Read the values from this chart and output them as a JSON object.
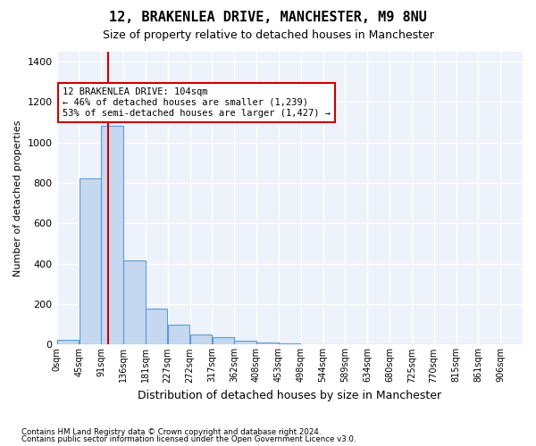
{
  "title": "12, BRAKENLEA DRIVE, MANCHESTER, M9 8NU",
  "subtitle": "Size of property relative to detached houses in Manchester",
  "xlabel": "Distribution of detached houses by size in Manchester",
  "ylabel": "Number of detached properties",
  "bar_color": "#c5d8f0",
  "bar_edge_color": "#5b9bd5",
  "background_color": "#eef2fa",
  "grid_color": "#ffffff",
  "bin_edges": [
    0,
    45,
    90,
    135,
    180,
    225,
    270,
    315,
    360,
    405,
    450,
    495,
    540,
    585,
    630,
    675,
    720,
    765,
    810,
    855,
    900,
    945
  ],
  "bin_labels": [
    "0sqm",
    "45sqm",
    "91sqm",
    "136sqm",
    "181sqm",
    "227sqm",
    "272sqm",
    "317sqm",
    "362sqm",
    "408sqm",
    "453sqm",
    "498sqm",
    "544sqm",
    "589sqm",
    "634sqm",
    "680sqm",
    "725sqm",
    "770sqm",
    "815sqm",
    "861sqm",
    "906sqm"
  ],
  "counts": [
    25,
    820,
    1080,
    415,
    180,
    100,
    50,
    35,
    20,
    12,
    5,
    0,
    0,
    0,
    0,
    0,
    0,
    0,
    0,
    0,
    0
  ],
  "red_line_x": 104,
  "ylim": [
    0,
    1450
  ],
  "yticks": [
    0,
    200,
    400,
    600,
    800,
    1000,
    1200,
    1400
  ],
  "annotation_text": "12 BRAKENLEA DRIVE: 104sqm\n← 46% of detached houses are smaller (1,239)\n53% of semi-detached houses are larger (1,427) →",
  "annotation_box_facecolor": "#ffffff",
  "annotation_box_edgecolor": "#cc0000",
  "footnote1": "Contains HM Land Registry data © Crown copyright and database right 2024.",
  "footnote2": "Contains public sector information licensed under the Open Government Licence v3.0."
}
